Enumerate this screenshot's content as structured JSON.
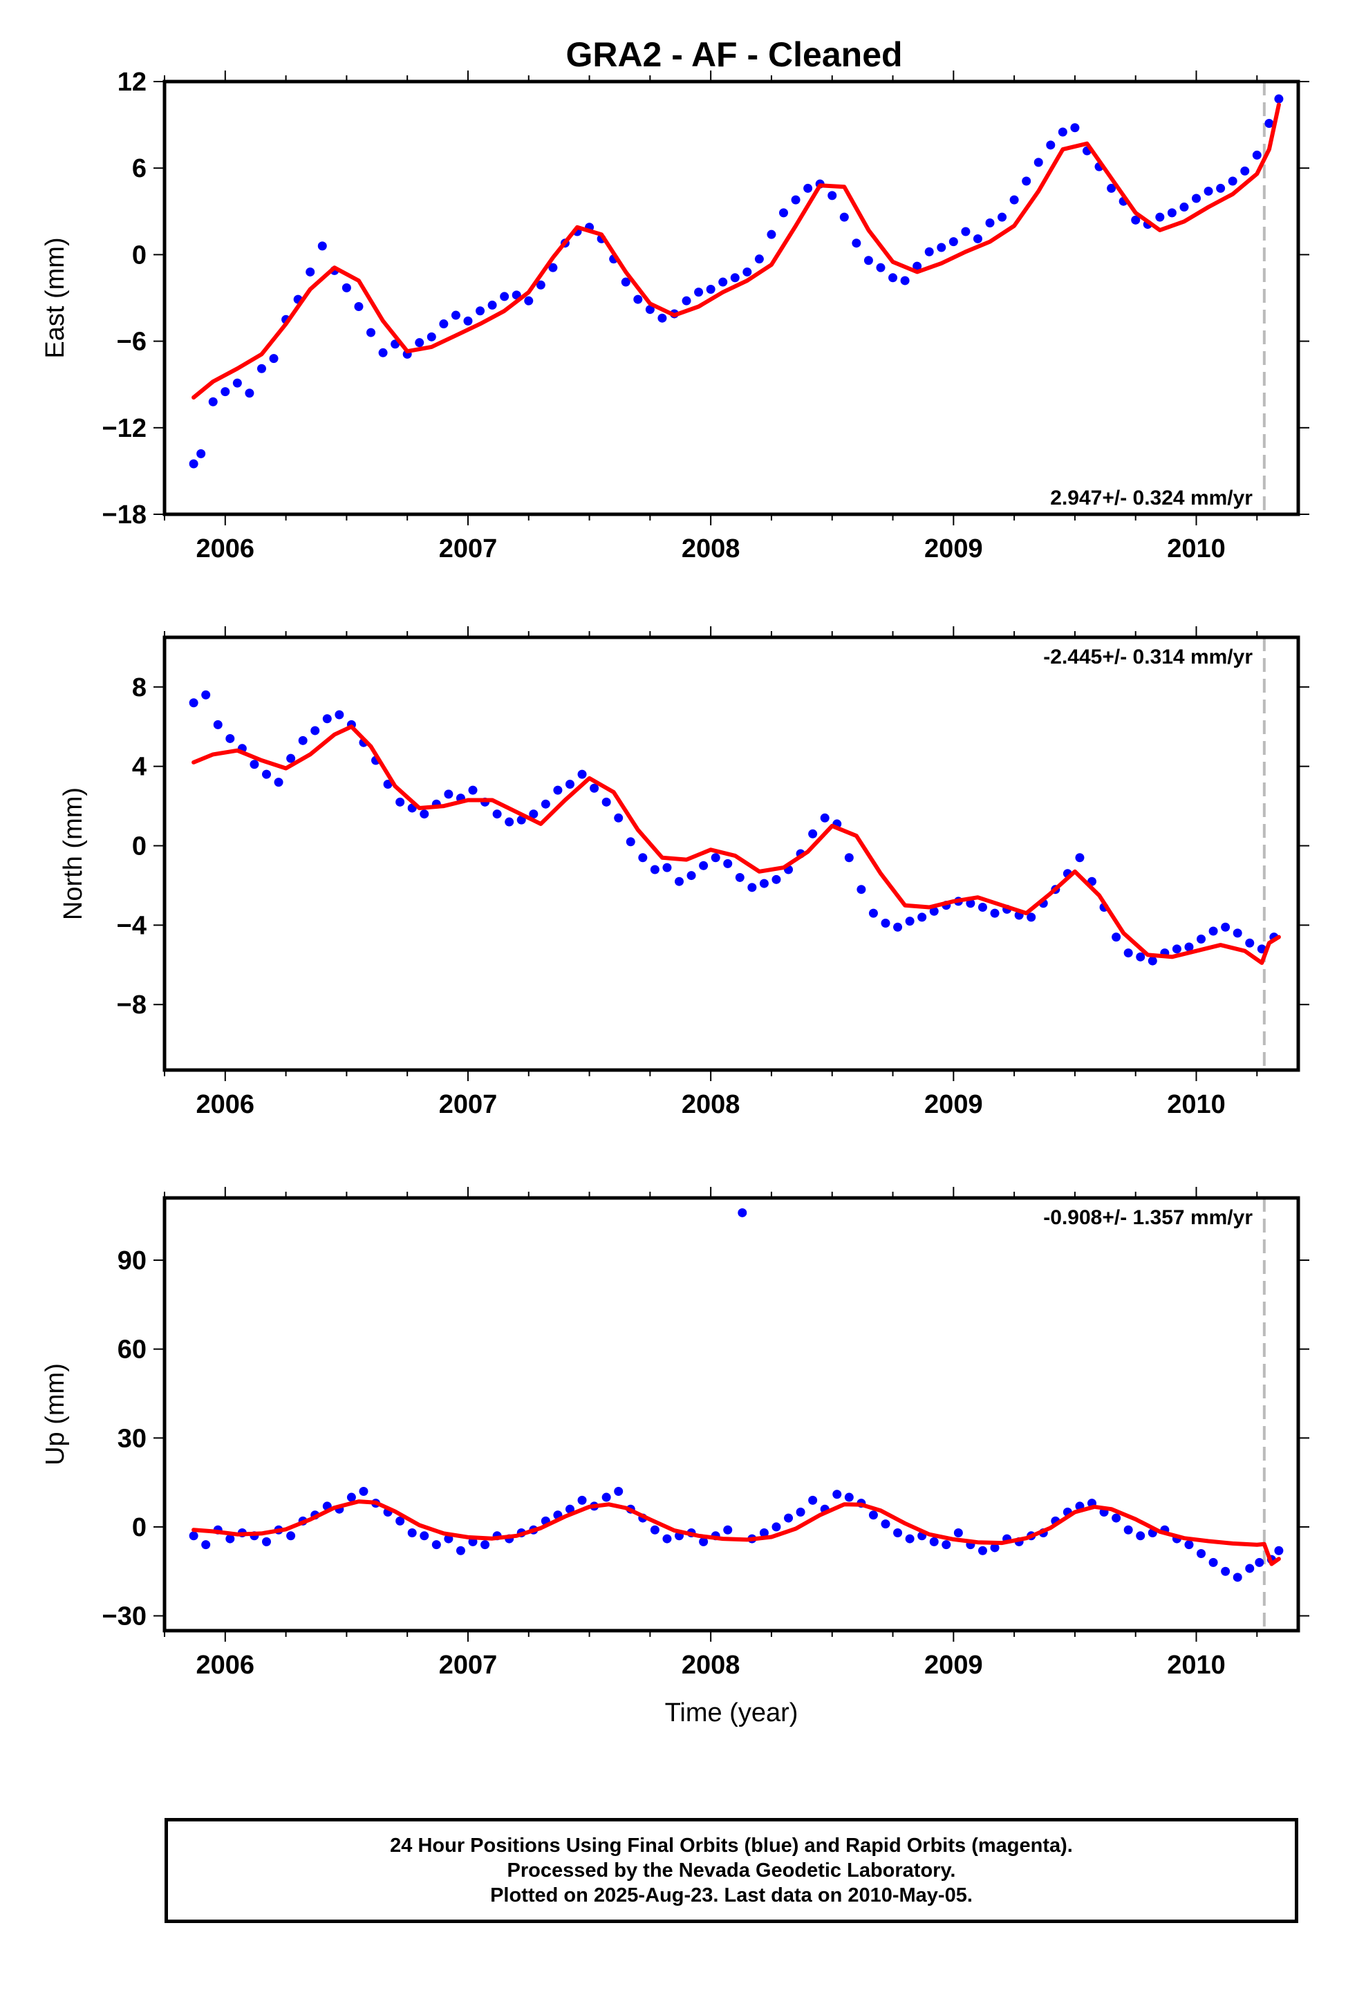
{
  "title": "GRA2  - AF - Cleaned",
  "xlabel": "Time (year)",
  "colors": {
    "points": "#0000ff",
    "model": "#ff0000",
    "reference_line": "#bbbbbb",
    "frame": "#000000"
  },
  "footer": {
    "line1": "24 Hour Positions Using Final Orbits (blue) and Rapid Orbits (magenta).",
    "line2": "Processed by the Nevada Geodetic Laboratory.",
    "line3": "Plotted on 2025-Aug-23. Last data on 2010-May-05."
  },
  "chart_data": [
    {
      "type": "scatter",
      "panel": "east",
      "ylabel": "East (mm)",
      "rate_label": "2.947+/- 0.324 mm/yr",
      "xlim": [
        2005.75,
        2010.42
      ],
      "ylim": [
        -18,
        12
      ],
      "xticks": [
        2006,
        2007,
        2008,
        2009,
        2010
      ],
      "yticks": [
        -18,
        -12,
        -6,
        0,
        6,
        12
      ],
      "ytick_labels": [
        "−18",
        "−12",
        "−6",
        "0",
        "6",
        "12"
      ],
      "reference_line_x": 2010.28,
      "series": [
        {
          "style": "points",
          "x": [
            2005.87,
            2005.9,
            2005.95,
            2006.0,
            2006.05,
            2006.1,
            2006.15,
            2006.2,
            2006.25,
            2006.3,
            2006.35,
            2006.4,
            2006.45,
            2006.5,
            2006.55,
            2006.6,
            2006.65,
            2006.7,
            2006.75,
            2006.8,
            2006.85,
            2006.9,
            2006.95,
            2007.0,
            2007.05,
            2007.1,
            2007.15,
            2007.2,
            2007.25,
            2007.3,
            2007.35,
            2007.4,
            2007.45,
            2007.5,
            2007.55,
            2007.6,
            2007.65,
            2007.7,
            2007.75,
            2007.8,
            2007.85,
            2007.9,
            2007.95,
            2008.0,
            2008.05,
            2008.1,
            2008.15,
            2008.2,
            2008.25,
            2008.3,
            2008.35,
            2008.4,
            2008.45,
            2008.5,
            2008.55,
            2008.6,
            2008.65,
            2008.7,
            2008.75,
            2008.8,
            2008.85,
            2008.9,
            2008.95,
            2009.0,
            2009.05,
            2009.1,
            2009.15,
            2009.2,
            2009.25,
            2009.3,
            2009.35,
            2009.4,
            2009.45,
            2009.5,
            2009.55,
            2009.6,
            2009.65,
            2009.7,
            2009.75,
            2009.8,
            2009.85,
            2009.9,
            2009.95,
            2010.0,
            2010.05,
            2010.1,
            2010.15,
            2010.2,
            2010.25,
            2010.3,
            2010.34
          ],
          "y": [
            -14.5,
            -13.8,
            -10.2,
            -9.5,
            -8.9,
            -9.6,
            -7.9,
            -7.2,
            -4.5,
            -3.1,
            -1.2,
            0.6,
            -1.1,
            -2.3,
            -3.6,
            -5.4,
            -6.8,
            -6.2,
            -6.9,
            -6.1,
            -5.7,
            -4.8,
            -4.2,
            -4.6,
            -3.9,
            -3.5,
            -2.9,
            -2.8,
            -3.2,
            -2.1,
            -0.9,
            0.8,
            1.6,
            1.9,
            1.1,
            -0.3,
            -1.9,
            -3.1,
            -3.8,
            -4.4,
            -4.1,
            -3.2,
            -2.6,
            -2.4,
            -1.9,
            -1.6,
            -1.2,
            -0.3,
            1.4,
            2.9,
            3.8,
            4.6,
            4.9,
            4.1,
            2.6,
            0.8,
            -0.4,
            -0.9,
            -1.6,
            -1.8,
            -0.8,
            0.2,
            0.5,
            0.9,
            1.6,
            1.1,
            2.2,
            2.6,
            3.8,
            5.1,
            6.4,
            7.6,
            8.5,
            8.8,
            7.2,
            6.1,
            4.6,
            3.7,
            2.4,
            2.1,
            2.6,
            2.9,
            3.3,
            3.9,
            4.4,
            4.6,
            5.1,
            5.8,
            6.9,
            9.1,
            10.8
          ]
        },
        {
          "style": "model",
          "x": [
            2005.87,
            2005.95,
            2006.05,
            2006.15,
            2006.25,
            2006.35,
            2006.45,
            2006.55,
            2006.65,
            2006.75,
            2006.85,
            2006.95,
            2007.05,
            2007.15,
            2007.25,
            2007.35,
            2007.45,
            2007.55,
            2007.65,
            2007.75,
            2007.85,
            2007.95,
            2008.05,
            2008.15,
            2008.25,
            2008.35,
            2008.45,
            2008.55,
            2008.65,
            2008.75,
            2008.85,
            2008.95,
            2009.05,
            2009.15,
            2009.25,
            2009.35,
            2009.45,
            2009.55,
            2009.65,
            2009.75,
            2009.85,
            2009.95,
            2010.05,
            2010.15,
            2010.25,
            2010.3,
            2010.34
          ],
          "y": [
            -9.9,
            -8.8,
            -7.9,
            -6.9,
            -4.8,
            -2.4,
            -0.9,
            -1.8,
            -4.6,
            -6.7,
            -6.4,
            -5.6,
            -4.8,
            -3.9,
            -2.6,
            -0.2,
            1.9,
            1.4,
            -1.2,
            -3.4,
            -4.2,
            -3.6,
            -2.6,
            -1.8,
            -0.7,
            2.0,
            4.8,
            4.7,
            1.7,
            -0.5,
            -1.2,
            -0.6,
            0.2,
            0.9,
            2.0,
            4.4,
            7.3,
            7.7,
            5.3,
            2.9,
            1.7,
            2.3,
            3.3,
            4.2,
            5.6,
            7.3,
            10.4
          ]
        }
      ]
    },
    {
      "type": "scatter",
      "panel": "north",
      "ylabel": "North (mm)",
      "rate_label": "-2.445+/- 0.314 mm/yr",
      "xlim": [
        2005.75,
        2010.42
      ],
      "ylim": [
        -11.3,
        10.5
      ],
      "xticks": [
        2006,
        2007,
        2008,
        2009,
        2010
      ],
      "yticks": [
        -8,
        -4,
        0,
        4,
        8
      ],
      "ytick_labels": [
        "−8",
        "−4",
        "0",
        "4",
        "8"
      ],
      "reference_line_x": 2010.28,
      "series": [
        {
          "style": "points",
          "x": [
            2005.87,
            2005.92,
            2005.97,
            2006.02,
            2006.07,
            2006.12,
            2006.17,
            2006.22,
            2006.27,
            2006.32,
            2006.37,
            2006.42,
            2006.47,
            2006.52,
            2006.57,
            2006.62,
            2006.67,
            2006.72,
            2006.77,
            2006.82,
            2006.87,
            2006.92,
            2006.97,
            2007.02,
            2007.07,
            2007.12,
            2007.17,
            2007.22,
            2007.27,
            2007.32,
            2007.37,
            2007.42,
            2007.47,
            2007.52,
            2007.57,
            2007.62,
            2007.67,
            2007.72,
            2007.77,
            2007.82,
            2007.87,
            2007.92,
            2007.97,
            2008.02,
            2008.07,
            2008.12,
            2008.17,
            2008.22,
            2008.27,
            2008.32,
            2008.37,
            2008.42,
            2008.47,
            2008.52,
            2008.57,
            2008.62,
            2008.67,
            2008.72,
            2008.77,
            2008.82,
            2008.87,
            2008.92,
            2008.97,
            2009.02,
            2009.07,
            2009.12,
            2009.17,
            2009.22,
            2009.27,
            2009.32,
            2009.37,
            2009.42,
            2009.47,
            2009.52,
            2009.57,
            2009.62,
            2009.67,
            2009.72,
            2009.77,
            2009.82,
            2009.87,
            2009.92,
            2009.97,
            2010.02,
            2010.07,
            2010.12,
            2010.17,
            2010.22,
            2010.27,
            2010.32
          ],
          "y": [
            7.2,
            7.6,
            6.1,
            5.4,
            4.9,
            4.1,
            3.6,
            3.2,
            4.4,
            5.3,
            5.8,
            6.4,
            6.6,
            6.1,
            5.2,
            4.3,
            3.1,
            2.2,
            1.9,
            1.6,
            2.1,
            2.6,
            2.4,
            2.8,
            2.2,
            1.6,
            1.2,
            1.3,
            1.6,
            2.1,
            2.8,
            3.1,
            3.6,
            2.9,
            2.2,
            1.4,
            0.2,
            -0.6,
            -1.2,
            -1.1,
            -1.8,
            -1.5,
            -1.0,
            -0.6,
            -0.9,
            -1.6,
            -2.1,
            -1.9,
            -1.7,
            -1.2,
            -0.4,
            0.6,
            1.4,
            1.1,
            -0.6,
            -2.2,
            -3.4,
            -3.9,
            -4.1,
            -3.8,
            -3.6,
            -3.3,
            -3.0,
            -2.8,
            -2.9,
            -3.1,
            -3.4,
            -3.2,
            -3.5,
            -3.6,
            -2.9,
            -2.2,
            -1.4,
            -0.6,
            -1.8,
            -3.1,
            -4.6,
            -5.4,
            -5.6,
            -5.8,
            -5.4,
            -5.2,
            -5.1,
            -4.7,
            -4.3,
            -4.1,
            -4.4,
            -4.9,
            -5.2,
            -4.6
          ]
        },
        {
          "style": "model",
          "x": [
            2005.87,
            2005.95,
            2006.05,
            2006.15,
            2006.25,
            2006.35,
            2006.45,
            2006.52,
            2006.6,
            2006.7,
            2006.8,
            2006.9,
            2007.0,
            2007.1,
            2007.2,
            2007.3,
            2007.4,
            2007.5,
            2007.6,
            2007.7,
            2007.8,
            2007.9,
            2008.0,
            2008.1,
            2008.2,
            2008.3,
            2008.4,
            2008.5,
            2008.6,
            2008.7,
            2008.8,
            2008.9,
            2009.0,
            2009.1,
            2009.2,
            2009.3,
            2009.4,
            2009.5,
            2009.6,
            2009.7,
            2009.8,
            2009.9,
            2010.0,
            2010.1,
            2010.2,
            2010.27,
            2010.3,
            2010.34
          ],
          "y": [
            4.2,
            4.6,
            4.8,
            4.3,
            3.9,
            4.6,
            5.6,
            6.0,
            5.0,
            3.0,
            1.9,
            2.0,
            2.3,
            2.3,
            1.7,
            1.1,
            2.3,
            3.4,
            2.7,
            0.8,
            -0.6,
            -0.7,
            -0.2,
            -0.5,
            -1.3,
            -1.1,
            -0.3,
            1.0,
            0.5,
            -1.4,
            -3.0,
            -3.1,
            -2.8,
            -2.6,
            -3.0,
            -3.4,
            -2.4,
            -1.3,
            -2.5,
            -4.4,
            -5.5,
            -5.6,
            -5.3,
            -5.0,
            -5.3,
            -5.9,
            -4.9,
            -4.6
          ]
        }
      ]
    },
    {
      "type": "scatter",
      "panel": "up",
      "ylabel": "Up (mm)",
      "rate_label": "-0.908+/- 1.357 mm/yr",
      "xlim": [
        2005.75,
        2010.42
      ],
      "ylim": [
        -35,
        111
      ],
      "xticks": [
        2006,
        2007,
        2008,
        2009,
        2010
      ],
      "yticks": [
        -30,
        0,
        30,
        60,
        90
      ],
      "ytick_labels": [
        "−30",
        "0",
        "30",
        "60",
        "90"
      ],
      "reference_line_x": 2010.28,
      "series": [
        {
          "style": "points",
          "x": [
            2005.87,
            2005.92,
            2005.97,
            2006.02,
            2006.07,
            2006.12,
            2006.17,
            2006.22,
            2006.27,
            2006.32,
            2006.37,
            2006.42,
            2006.47,
            2006.52,
            2006.57,
            2006.62,
            2006.67,
            2006.72,
            2006.77,
            2006.82,
            2006.87,
            2006.92,
            2006.97,
            2007.02,
            2007.07,
            2007.12,
            2007.17,
            2007.22,
            2007.27,
            2007.32,
            2007.37,
            2007.42,
            2007.47,
            2007.52,
            2007.57,
            2007.62,
            2007.67,
            2007.72,
            2007.77,
            2007.82,
            2007.87,
            2007.92,
            2007.97,
            2008.02,
            2008.07,
            2008.13,
            2008.17,
            2008.22,
            2008.27,
            2008.32,
            2008.37,
            2008.42,
            2008.47,
            2008.52,
            2008.57,
            2008.62,
            2008.67,
            2008.72,
            2008.77,
            2008.82,
            2008.87,
            2008.92,
            2008.97,
            2009.02,
            2009.07,
            2009.12,
            2009.17,
            2009.22,
            2009.27,
            2009.32,
            2009.37,
            2009.42,
            2009.47,
            2009.52,
            2009.57,
            2009.62,
            2009.67,
            2009.72,
            2009.77,
            2009.82,
            2009.87,
            2009.92,
            2009.97,
            2010.02,
            2010.07,
            2010.12,
            2010.17,
            2010.22,
            2010.26,
            2010.31,
            2010.34
          ],
          "y": [
            -3,
            -6,
            -1,
            -4,
            -2,
            -3,
            -5,
            -1,
            -3,
            2,
            4,
            7,
            6,
            10,
            12,
            8,
            5,
            2,
            -2,
            -3,
            -6,
            -4,
            -8,
            -5,
            -6,
            -3,
            -4,
            -2,
            -1,
            2,
            4,
            6,
            9,
            7,
            10,
            12,
            6,
            3,
            -1,
            -4,
            -3,
            -2,
            -5,
            -3,
            -1,
            106,
            -4,
            -2,
            0,
            3,
            5,
            9,
            6,
            11,
            10,
            8,
            4,
            1,
            -2,
            -4,
            -3,
            -5,
            -6,
            -2,
            -6,
            -8,
            -7,
            -4,
            -5,
            -3,
            -2,
            2,
            5,
            7,
            8,
            5,
            3,
            -1,
            -3,
            -2,
            -1,
            -4,
            -6,
            -9,
            -12,
            -15,
            -17,
            -14,
            -12,
            -11,
            -8
          ]
        },
        {
          "style": "model",
          "x": [
            2005.87,
            2005.95,
            2006.05,
            2006.15,
            2006.25,
            2006.35,
            2006.45,
            2006.55,
            2006.62,
            2006.7,
            2006.8,
            2006.9,
            2007.0,
            2007.1,
            2007.2,
            2007.3,
            2007.4,
            2007.5,
            2007.58,
            2007.65,
            2007.75,
            2007.85,
            2007.95,
            2008.05,
            2008.15,
            2008.25,
            2008.35,
            2008.45,
            2008.55,
            2008.62,
            2008.7,
            2008.8,
            2008.9,
            2009.0,
            2009.1,
            2009.2,
            2009.3,
            2009.4,
            2009.5,
            2009.58,
            2009.65,
            2009.75,
            2009.85,
            2009.95,
            2010.05,
            2010.15,
            2010.25,
            2010.28,
            2010.31,
            2010.34
          ],
          "y": [
            -1,
            -1.5,
            -2.5,
            -2.2,
            -0.8,
            2.5,
            6.5,
            8.6,
            8.2,
            5.2,
            0.6,
            -2.2,
            -3.5,
            -3.9,
            -3.0,
            -0.4,
            3.5,
            6.8,
            7.6,
            6.4,
            2.5,
            -1.2,
            -3.0,
            -4.0,
            -4.3,
            -3.4,
            -0.6,
            4.0,
            7.6,
            7.5,
            5.5,
            1.2,
            -2.5,
            -4.2,
            -5.2,
            -5.4,
            -3.8,
            -0.3,
            5.0,
            6.8,
            6.0,
            2.6,
            -1.6,
            -3.8,
            -4.8,
            -5.6,
            -6.0,
            -5.8,
            -12.5,
            -10.8
          ]
        }
      ]
    }
  ]
}
